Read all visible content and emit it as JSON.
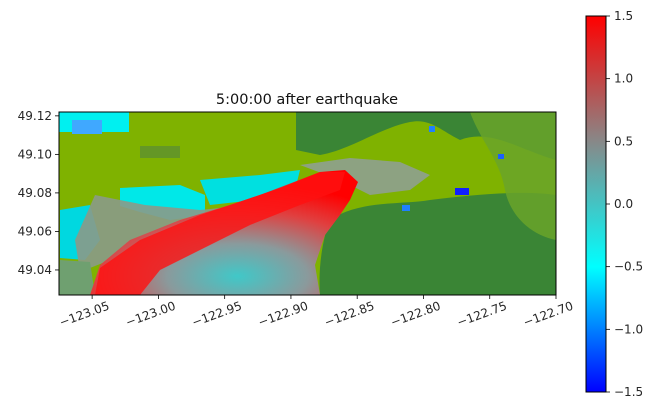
{
  "chart_data": {
    "type": "heatmap",
    "title": "5:00:00 after earthquake",
    "xlabel": "",
    "ylabel": "",
    "xlim": [
      -123.075,
      -122.7
    ],
    "ylim": [
      49.027,
      49.122
    ],
    "xticks": [
      {
        "value": -123.05,
        "label": "−123.05"
      },
      {
        "value": -123.0,
        "label": "−123.00"
      },
      {
        "value": -122.95,
        "label": "−122.95"
      },
      {
        "value": -122.9,
        "label": "−122.90"
      },
      {
        "value": -122.85,
        "label": "−122.85"
      },
      {
        "value": -122.8,
        "label": "−122.80"
      },
      {
        "value": -122.75,
        "label": "−122.75"
      },
      {
        "value": -122.7,
        "label": "−122.70"
      }
    ],
    "yticks": [
      {
        "value": 49.04,
        "label": "49.04"
      },
      {
        "value": 49.06,
        "label": "49.06"
      },
      {
        "value": 49.08,
        "label": "49.08"
      },
      {
        "value": 49.1,
        "label": "49.10"
      },
      {
        "value": 49.12,
        "label": "49.12"
      }
    ],
    "colorbar": {
      "range": [
        -1.5,
        1.5
      ],
      "ticks": [
        {
          "value": 1.5,
          "label": "1.5"
        },
        {
          "value": 1.0,
          "label": "1.0"
        },
        {
          "value": 0.5,
          "label": "0.5"
        },
        {
          "value": 0.0,
          "label": "0.0"
        },
        {
          "value": -0.5,
          "label": "−0.5"
        },
        {
          "value": -1.0,
          "label": "−1.0"
        },
        {
          "value": -1.5,
          "label": "−1.5"
        }
      ],
      "colors": [
        "#0000ff",
        "#00ffff",
        "#888888",
        "#ff0000"
      ]
    },
    "map_colors": {
      "land_dark": "#3a8535",
      "land_light": "#7fb200",
      "shore_gray": "#8b9a88"
    }
  }
}
